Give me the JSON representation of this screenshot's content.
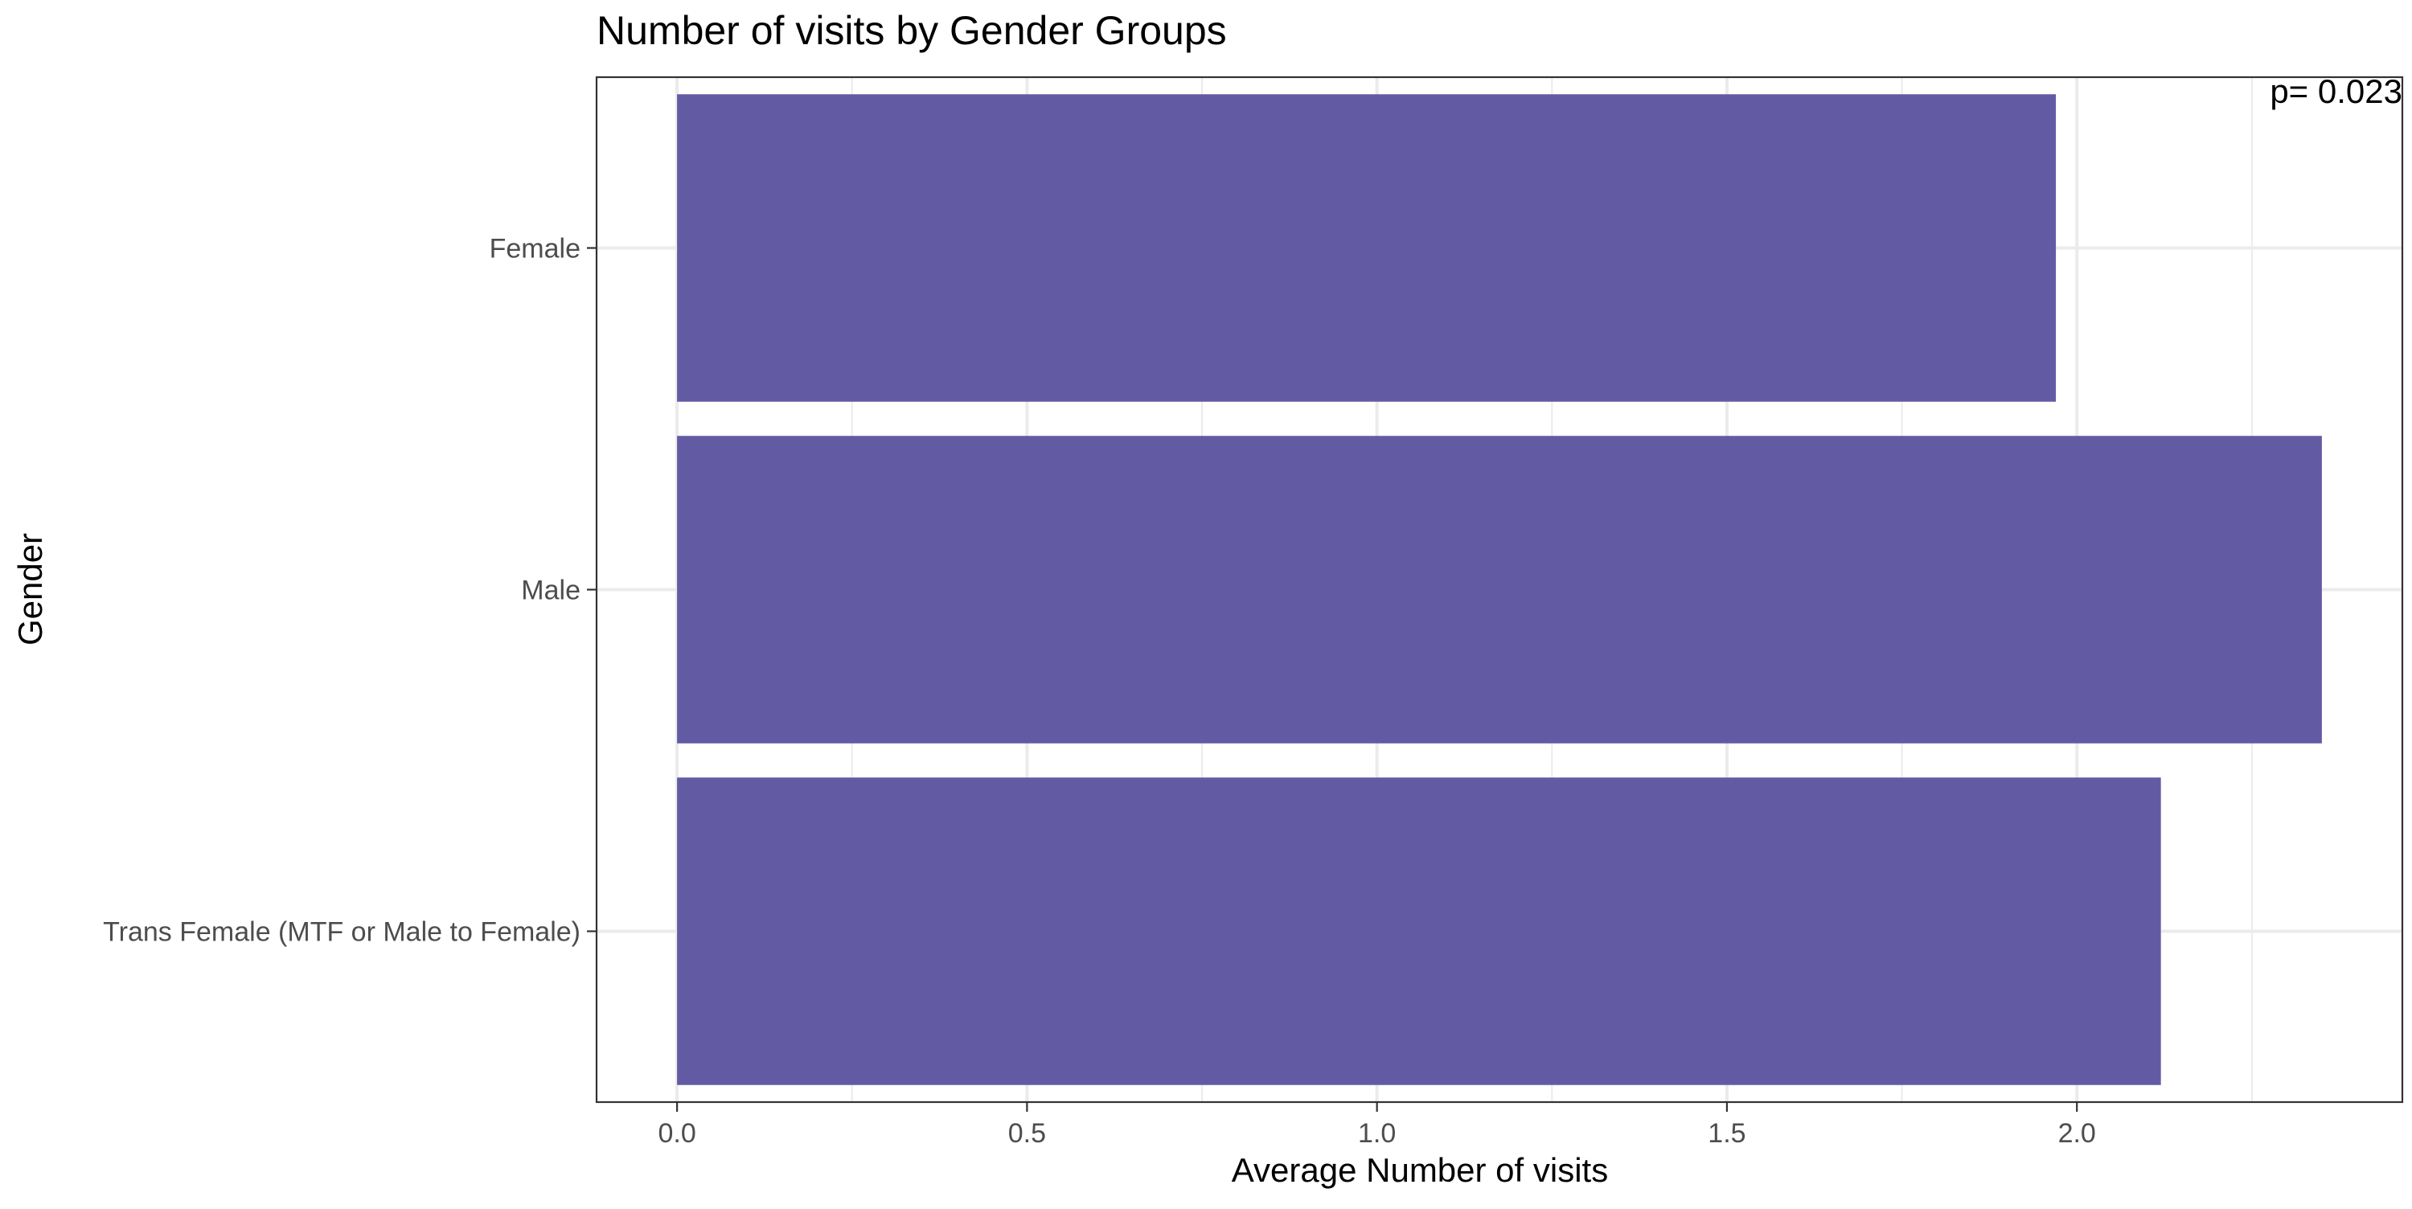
{
  "chart_data": {
    "type": "bar",
    "orientation": "horizontal",
    "title": "Number of visits by Gender Groups",
    "xlabel": "Average Number of visits",
    "ylabel": "Gender",
    "categories": [
      "Female",
      "Male",
      "Trans Female (MTF or Male to Female)"
    ],
    "values": [
      1.97,
      2.35,
      2.12
    ],
    "xlim": [
      -0.115,
      2.465
    ],
    "x_ticks": [
      0.0,
      0.5,
      1.0,
      1.5,
      2.0
    ],
    "x_tick_labels": [
      "0.0",
      "0.5",
      "1.0",
      "1.5",
      "2.0"
    ],
    "annotation": "p= 0.023",
    "grid": true,
    "bar_color": "#625BA4",
    "grid_color": "#EBEBEB",
    "panel_border_color": "#333333"
  }
}
